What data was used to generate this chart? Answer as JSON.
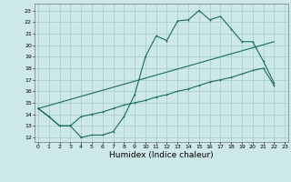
{
  "bg_color": "#cce8e8",
  "grid_color": "#aacfcf",
  "line_color": "#1a6b5a",
  "xlabel": "Humidex (Indice chaleur)",
  "xlabel_fontsize": 6.5,
  "yticks": [
    12,
    13,
    14,
    15,
    16,
    17,
    18,
    19,
    20,
    21,
    22,
    23
  ],
  "xticks": [
    0,
    1,
    2,
    3,
    4,
    5,
    6,
    7,
    8,
    9,
    10,
    11,
    12,
    13,
    14,
    15,
    16,
    17,
    18,
    19,
    20,
    21,
    22,
    23
  ],
  "xlim": [
    -0.3,
    23.3
  ],
  "ylim": [
    11.6,
    23.6
  ],
  "line1_x": [
    0,
    1,
    2,
    3,
    4,
    5,
    6,
    7,
    8,
    9,
    10,
    11,
    12,
    13,
    14,
    15,
    16,
    17,
    18,
    19,
    20,
    21,
    22
  ],
  "line1_y": [
    14.5,
    13.8,
    13.0,
    13.0,
    12.0,
    12.2,
    12.2,
    12.5,
    13.8,
    15.7,
    19.0,
    20.8,
    20.4,
    22.1,
    22.2,
    23.0,
    22.2,
    22.5,
    21.4,
    20.3,
    20.3,
    18.6,
    16.7
  ],
  "line2_x": [
    0,
    1,
    2,
    3,
    4,
    5,
    6,
    7,
    8,
    9,
    10,
    11,
    12,
    13,
    14,
    15,
    16,
    17,
    18,
    19,
    20,
    21,
    22
  ],
  "line2_y": [
    14.5,
    13.8,
    13.0,
    13.0,
    13.8,
    14.0,
    14.2,
    14.5,
    14.8,
    15.0,
    15.2,
    15.5,
    15.7,
    16.0,
    16.2,
    16.5,
    16.8,
    17.0,
    17.2,
    17.5,
    17.8,
    18.0,
    16.5
  ],
  "line3_x": [
    0,
    22
  ],
  "line3_y": [
    14.5,
    20.3
  ]
}
